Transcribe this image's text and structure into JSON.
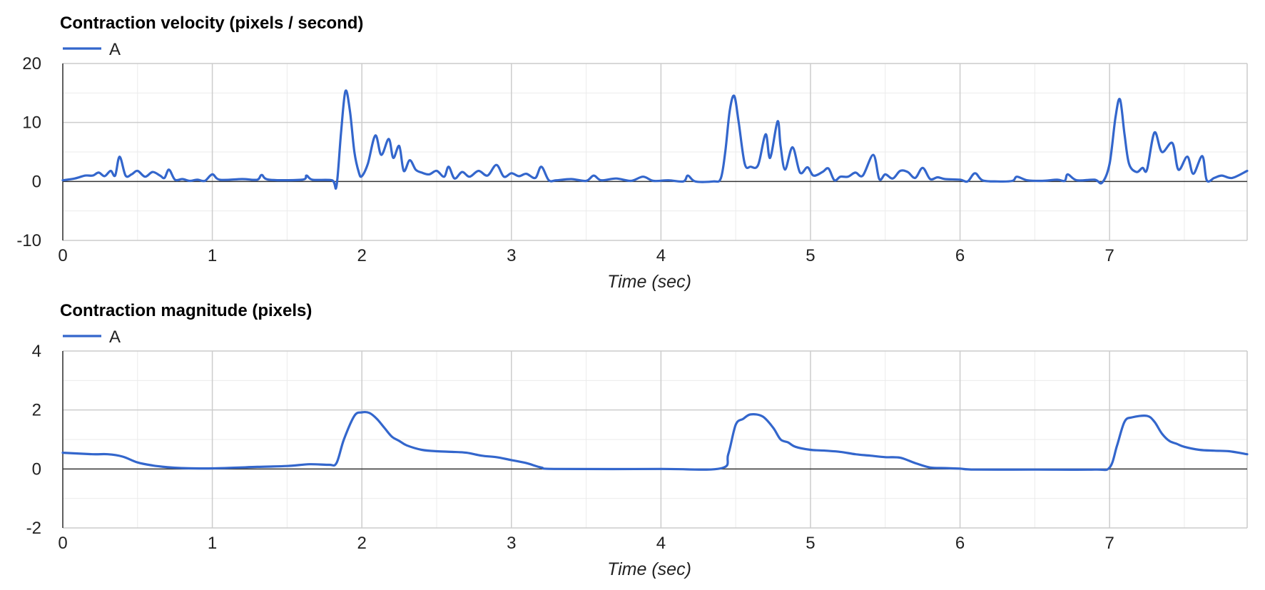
{
  "chart_data": [
    {
      "type": "line",
      "title": "Contraction velocity (pixels / second)",
      "xlabel": "Time (sec)",
      "ylabel": "",
      "xlim": [
        0,
        7.92
      ],
      "ylim": [
        -10,
        20
      ],
      "xticks": [
        0,
        1,
        2,
        3,
        4,
        5,
        6,
        7
      ],
      "yticks": [
        -10,
        0,
        10,
        20
      ],
      "x_minor_step": 0.5,
      "y_minor_step": 5,
      "grid": true,
      "legend": "top-left",
      "colors": {
        "line": "#3366cc",
        "grid_major": "#cccccc",
        "grid_minor": "#ebebeb",
        "baseline": "#333333",
        "text": "#222222"
      },
      "series": [
        {
          "name": "A",
          "points": [
            [
              0.0,
              0.2
            ],
            [
              0.08,
              0.5
            ],
            [
              0.15,
              1.0
            ],
            [
              0.2,
              1.0
            ],
            [
              0.24,
              1.5
            ],
            [
              0.28,
              0.9
            ],
            [
              0.32,
              1.8
            ],
            [
              0.35,
              1.0
            ],
            [
              0.38,
              4.2
            ],
            [
              0.42,
              1.0
            ],
            [
              0.46,
              1.2
            ],
            [
              0.5,
              1.8
            ],
            [
              0.55,
              0.8
            ],
            [
              0.6,
              1.6
            ],
            [
              0.65,
              1.0
            ],
            [
              0.68,
              0.6
            ],
            [
              0.71,
              2.0
            ],
            [
              0.75,
              0.3
            ],
            [
              0.8,
              0.4
            ],
            [
              0.85,
              0.1
            ],
            [
              0.9,
              0.3
            ],
            [
              0.95,
              0.1
            ],
            [
              1.0,
              1.2
            ],
            [
              1.05,
              0.3
            ],
            [
              1.2,
              0.4
            ],
            [
              1.3,
              0.3
            ],
            [
              1.33,
              1.1
            ],
            [
              1.38,
              0.3
            ],
            [
              1.6,
              0.3
            ],
            [
              1.63,
              1.0
            ],
            [
              1.67,
              0.3
            ],
            [
              1.8,
              0.2
            ],
            [
              1.83,
              -0.8
            ],
            [
              1.86,
              8.0
            ],
            [
              1.89,
              15.3
            ],
            [
              1.92,
              12.0
            ],
            [
              1.95,
              5.0
            ],
            [
              1.98,
              1.5
            ],
            [
              2.0,
              0.9
            ],
            [
              2.04,
              3.0
            ],
            [
              2.09,
              7.8
            ],
            [
              2.13,
              4.5
            ],
            [
              2.18,
              7.2
            ],
            [
              2.21,
              4.0
            ],
            [
              2.25,
              6.0
            ],
            [
              2.28,
              1.8
            ],
            [
              2.32,
              3.6
            ],
            [
              2.36,
              2.0
            ],
            [
              2.4,
              1.5
            ],
            [
              2.45,
              1.2
            ],
            [
              2.5,
              1.8
            ],
            [
              2.55,
              0.8
            ],
            [
              2.58,
              2.5
            ],
            [
              2.62,
              0.5
            ],
            [
              2.67,
              1.6
            ],
            [
              2.72,
              0.8
            ],
            [
              2.78,
              1.8
            ],
            [
              2.84,
              1.0
            ],
            [
              2.9,
              2.8
            ],
            [
              2.95,
              0.8
            ],
            [
              3.0,
              1.4
            ],
            [
              3.05,
              0.9
            ],
            [
              3.1,
              1.3
            ],
            [
              3.16,
              0.6
            ],
            [
              3.2,
              2.5
            ],
            [
              3.25,
              0.2
            ],
            [
              3.3,
              0.2
            ],
            [
              3.4,
              0.4
            ],
            [
              3.5,
              0.1
            ],
            [
              3.55,
              1.0
            ],
            [
              3.6,
              0.2
            ],
            [
              3.7,
              0.5
            ],
            [
              3.8,
              0.1
            ],
            [
              3.88,
              0.8
            ],
            [
              3.95,
              0.1
            ],
            [
              4.05,
              0.2
            ],
            [
              4.15,
              0.0
            ],
            [
              4.18,
              1.0
            ],
            [
              4.23,
              0.0
            ],
            [
              4.35,
              0.0
            ],
            [
              4.4,
              0.5
            ],
            [
              4.43,
              5.0
            ],
            [
              4.46,
              12.0
            ],
            [
              4.49,
              14.5
            ],
            [
              4.52,
              10.0
            ],
            [
              4.56,
              3.0
            ],
            [
              4.6,
              2.5
            ],
            [
              4.65,
              2.8
            ],
            [
              4.7,
              8.0
            ],
            [
              4.73,
              4.0
            ],
            [
              4.78,
              10.2
            ],
            [
              4.8,
              6.0
            ],
            [
              4.83,
              2.0
            ],
            [
              4.88,
              5.8
            ],
            [
              4.93,
              1.5
            ],
            [
              4.98,
              2.4
            ],
            [
              5.02,
              1.0
            ],
            [
              5.08,
              1.6
            ],
            [
              5.12,
              2.2
            ],
            [
              5.16,
              0.2
            ],
            [
              5.2,
              0.8
            ],
            [
              5.25,
              0.8
            ],
            [
              5.3,
              1.5
            ],
            [
              5.35,
              1.0
            ],
            [
              5.42,
              4.5
            ],
            [
              5.46,
              0.4
            ],
            [
              5.5,
              1.2
            ],
            [
              5.55,
              0.5
            ],
            [
              5.6,
              1.8
            ],
            [
              5.65,
              1.6
            ],
            [
              5.7,
              0.6
            ],
            [
              5.75,
              2.3
            ],
            [
              5.8,
              0.4
            ],
            [
              5.85,
              0.7
            ],
            [
              5.9,
              0.4
            ],
            [
              6.0,
              0.3
            ],
            [
              6.05,
              0.0
            ],
            [
              6.1,
              1.4
            ],
            [
              6.15,
              0.2
            ],
            [
              6.25,
              0.0
            ],
            [
              6.35,
              0.1
            ],
            [
              6.38,
              0.8
            ],
            [
              6.45,
              0.2
            ],
            [
              6.55,
              0.1
            ],
            [
              6.65,
              0.3
            ],
            [
              6.7,
              0.1
            ],
            [
              6.72,
              1.2
            ],
            [
              6.78,
              0.2
            ],
            [
              6.9,
              0.3
            ],
            [
              6.95,
              -0.2
            ],
            [
              7.0,
              3.0
            ],
            [
              7.04,
              11.0
            ],
            [
              7.07,
              13.9
            ],
            [
              7.1,
              8.0
            ],
            [
              7.13,
              3.0
            ],
            [
              7.18,
              1.6
            ],
            [
              7.22,
              2.3
            ],
            [
              7.25,
              2.0
            ],
            [
              7.3,
              8.3
            ],
            [
              7.35,
              5.0
            ],
            [
              7.42,
              6.5
            ],
            [
              7.46,
              2.0
            ],
            [
              7.52,
              4.2
            ],
            [
              7.56,
              1.3
            ],
            [
              7.62,
              4.3
            ],
            [
              7.65,
              0.2
            ],
            [
              7.7,
              0.6
            ],
            [
              7.75,
              1.0
            ],
            [
              7.82,
              0.6
            ],
            [
              7.92,
              1.8
            ]
          ]
        }
      ]
    },
    {
      "type": "line",
      "title": "Contraction magnitude (pixels)",
      "xlabel": "Time (sec)",
      "ylabel": "",
      "xlim": [
        0,
        7.92
      ],
      "ylim": [
        -2,
        4
      ],
      "xticks": [
        0,
        1,
        2,
        3,
        4,
        5,
        6,
        7
      ],
      "yticks": [
        -2,
        0,
        2,
        4
      ],
      "x_minor_step": 0.5,
      "y_minor_step": 1,
      "grid": true,
      "legend": "top-left",
      "colors": {
        "line": "#3366cc",
        "grid_major": "#cccccc",
        "grid_minor": "#ebebeb",
        "baseline": "#333333",
        "text": "#222222"
      },
      "series": [
        {
          "name": "A",
          "points": [
            [
              0.0,
              0.55
            ],
            [
              0.2,
              0.5
            ],
            [
              0.3,
              0.5
            ],
            [
              0.4,
              0.42
            ],
            [
              0.5,
              0.22
            ],
            [
              0.6,
              0.12
            ],
            [
              0.7,
              0.06
            ],
            [
              0.8,
              0.03
            ],
            [
              1.0,
              0.02
            ],
            [
              1.3,
              0.07
            ],
            [
              1.5,
              0.1
            ],
            [
              1.65,
              0.16
            ],
            [
              1.78,
              0.14
            ],
            [
              1.83,
              0.2
            ],
            [
              1.88,
              1.0
            ],
            [
              1.95,
              1.8
            ],
            [
              2.0,
              1.92
            ],
            [
              2.05,
              1.9
            ],
            [
              2.1,
              1.7
            ],
            [
              2.15,
              1.4
            ],
            [
              2.2,
              1.1
            ],
            [
              2.25,
              0.95
            ],
            [
              2.3,
              0.8
            ],
            [
              2.4,
              0.65
            ],
            [
              2.5,
              0.6
            ],
            [
              2.6,
              0.58
            ],
            [
              2.7,
              0.55
            ],
            [
              2.8,
              0.45
            ],
            [
              2.9,
              0.4
            ],
            [
              3.0,
              0.3
            ],
            [
              3.1,
              0.2
            ],
            [
              3.2,
              0.05
            ],
            [
              3.3,
              0.0
            ],
            [
              4.0,
              0.0
            ],
            [
              4.4,
              0.02
            ],
            [
              4.45,
              0.5
            ],
            [
              4.5,
              1.5
            ],
            [
              4.55,
              1.7
            ],
            [
              4.6,
              1.85
            ],
            [
              4.68,
              1.78
            ],
            [
              4.75,
              1.4
            ],
            [
              4.8,
              1.0
            ],
            [
              4.85,
              0.9
            ],
            [
              4.9,
              0.75
            ],
            [
              5.0,
              0.65
            ],
            [
              5.1,
              0.62
            ],
            [
              5.2,
              0.58
            ],
            [
              5.3,
              0.5
            ],
            [
              5.4,
              0.45
            ],
            [
              5.5,
              0.4
            ],
            [
              5.6,
              0.38
            ],
            [
              5.7,
              0.2
            ],
            [
              5.8,
              0.05
            ],
            [
              5.9,
              0.03
            ],
            [
              6.0,
              0.01
            ],
            [
              6.1,
              -0.02
            ],
            [
              6.5,
              -0.02
            ],
            [
              6.9,
              -0.02
            ],
            [
              7.0,
              0.05
            ],
            [
              7.05,
              0.8
            ],
            [
              7.1,
              1.6
            ],
            [
              7.15,
              1.75
            ],
            [
              7.25,
              1.8
            ],
            [
              7.3,
              1.6
            ],
            [
              7.35,
              1.2
            ],
            [
              7.4,
              0.95
            ],
            [
              7.45,
              0.85
            ],
            [
              7.5,
              0.75
            ],
            [
              7.6,
              0.65
            ],
            [
              7.7,
              0.62
            ],
            [
              7.8,
              0.6
            ],
            [
              7.92,
              0.5
            ]
          ]
        }
      ]
    }
  ]
}
